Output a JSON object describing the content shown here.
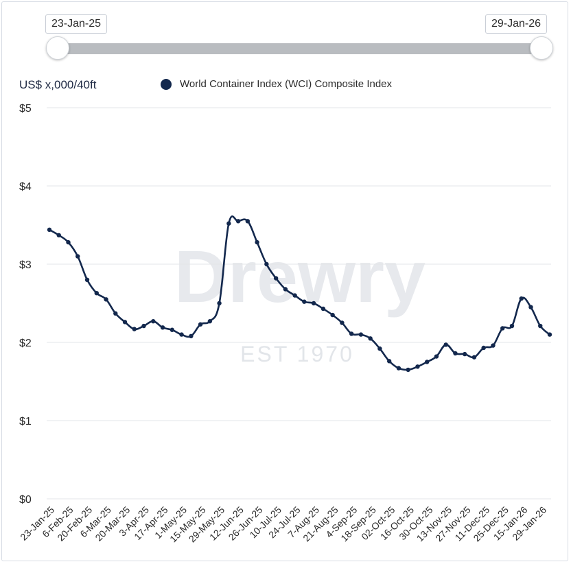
{
  "range_selector": {
    "start_label": "23-Jan-25",
    "end_label": "29-Jan-26"
  },
  "watermark": {
    "brand": "Drewry",
    "est": "EST 1970"
  },
  "colors": {
    "series": "#13284d",
    "grid": "#e3e5e8",
    "track": "#b9bcc0"
  },
  "chart_data": {
    "type": "line",
    "ylabel": "US$ x,000/40ft",
    "legend_position": "top",
    "grid": true,
    "ylim": [
      0,
      5
    ],
    "y_ticks": [
      {
        "value": 0,
        "label": "$0"
      },
      {
        "value": 1,
        "label": "$1"
      },
      {
        "value": 2,
        "label": "$2"
      },
      {
        "value": 3,
        "label": "$3"
      },
      {
        "value": 4,
        "label": "$4"
      },
      {
        "value": 5,
        "label": "$5"
      }
    ],
    "x_tick_labels": [
      "23-Jan-25",
      "6-Feb-25",
      "20-Feb-25",
      "6-Mar-25",
      "20-Mar-25",
      "3-Apr-25",
      "17-Apr-25",
      "1-May-25",
      "15-May-25",
      "29-May-25",
      "12-Jun-25",
      "26-Jun-25",
      "10-Jul-25",
      "24-Jul-25",
      "7-Aug-25",
      "21-Aug-25",
      "4-Sep-25",
      "18-Sep-25",
      "02-Oct-25",
      "16-Oct-25",
      "30-Oct-25",
      "13-Nov-25",
      "27-Nov-25",
      "11-Dec-25",
      "25-Dec-25",
      "15-Jan-26",
      "29-Jan-26"
    ],
    "x": [
      "23-Jan-25",
      "30-Jan-25",
      "6-Feb-25",
      "13-Feb-25",
      "20-Feb-25",
      "27-Feb-25",
      "6-Mar-25",
      "13-Mar-25",
      "20-Mar-25",
      "27-Mar-25",
      "3-Apr-25",
      "10-Apr-25",
      "17-Apr-25",
      "24-Apr-25",
      "1-May-25",
      "8-May-25",
      "15-May-25",
      "22-May-25",
      "29-May-25",
      "5-Jun-25",
      "12-Jun-25",
      "19-Jun-25",
      "26-Jun-25",
      "3-Jul-25",
      "10-Jul-25",
      "17-Jul-25",
      "24-Jul-25",
      "31-Jul-25",
      "7-Aug-25",
      "14-Aug-25",
      "21-Aug-25",
      "28-Aug-25",
      "4-Sep-25",
      "11-Sep-25",
      "18-Sep-25",
      "25-Sep-25",
      "02-Oct-25",
      "9-Oct-25",
      "16-Oct-25",
      "23-Oct-25",
      "30-Oct-25",
      "6-Nov-25",
      "13-Nov-25",
      "20-Nov-25",
      "27-Nov-25",
      "4-Dec-25",
      "11-Dec-25",
      "18-Dec-25",
      "25-Dec-25",
      "1-Jan-26",
      "8-Jan-26",
      "15-Jan-26",
      "22-Jan-26",
      "29-Jan-26"
    ],
    "series": [
      {
        "name": "World Container Index (WCI) Composite Index",
        "color": "#13284d",
        "values": [
          3.44,
          3.37,
          3.28,
          3.1,
          2.8,
          2.63,
          2.55,
          2.37,
          2.26,
          2.17,
          2.21,
          2.27,
          2.19,
          2.16,
          2.1,
          2.08,
          2.23,
          2.27,
          2.5,
          3.52,
          3.55,
          3.55,
          3.28,
          3.0,
          2.82,
          2.68,
          2.6,
          2.52,
          2.5,
          2.43,
          2.35,
          2.25,
          2.11,
          2.1,
          2.05,
          1.92,
          1.76,
          1.67,
          1.65,
          1.69,
          1.75,
          1.82,
          1.97,
          1.86,
          1.85,
          1.81,
          1.93,
          1.96,
          2.18,
          2.21,
          2.56,
          2.45,
          2.21,
          2.1
        ]
      }
    ]
  }
}
